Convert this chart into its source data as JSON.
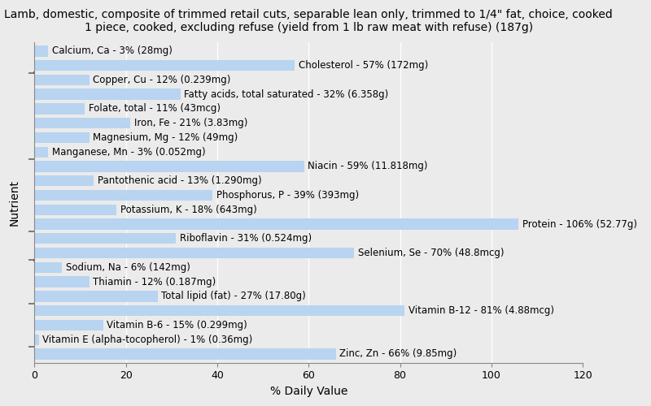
{
  "title": "Lamb, domestic, composite of trimmed retail cuts, separable lean only, trimmed to 1/4\" fat, choice, cooked\n1 piece, cooked, excluding refuse (yield from 1 lb raw meat with refuse) (187g)",
  "xlabel": "% Daily Value",
  "ylabel": "Nutrient",
  "nutrients": [
    "Calcium, Ca - 3% (28mg)",
    "Cholesterol - 57% (172mg)",
    "Copper, Cu - 12% (0.239mg)",
    "Fatty acids, total saturated - 32% (6.358g)",
    "Folate, total - 11% (43mcg)",
    "Iron, Fe - 21% (3.83mg)",
    "Magnesium, Mg - 12% (49mg)",
    "Manganese, Mn - 3% (0.052mg)",
    "Niacin - 59% (11.818mg)",
    "Pantothenic acid - 13% (1.290mg)",
    "Phosphorus, P - 39% (393mg)",
    "Potassium, K - 18% (643mg)",
    "Protein - 106% (52.77g)",
    "Riboflavin - 31% (0.524mg)",
    "Selenium, Se - 70% (48.8mcg)",
    "Sodium, Na - 6% (142mg)",
    "Thiamin - 12% (0.187mg)",
    "Total lipid (fat) - 27% (17.80g)",
    "Vitamin B-12 - 81% (4.88mcg)",
    "Vitamin B-6 - 15% (0.299mg)",
    "Vitamin E (alpha-tocopherol) - 1% (0.36mg)",
    "Zinc, Zn - 66% (9.85mg)"
  ],
  "values": [
    3,
    57,
    12,
    32,
    11,
    21,
    12,
    3,
    59,
    13,
    39,
    18,
    106,
    31,
    70,
    6,
    12,
    27,
    81,
    15,
    1,
    66
  ],
  "bar_color": "#b8d4f0",
  "background_color": "#ebebeb",
  "plot_bg_color": "#ebebeb",
  "xlim": [
    0,
    120
  ],
  "xticks": [
    0,
    20,
    40,
    60,
    80,
    100,
    120
  ],
  "title_fontsize": 10,
  "label_fontsize": 8.5,
  "tick_fontsize": 9,
  "ylabel_fontsize": 10,
  "xlabel_fontsize": 10,
  "bar_height": 0.75
}
